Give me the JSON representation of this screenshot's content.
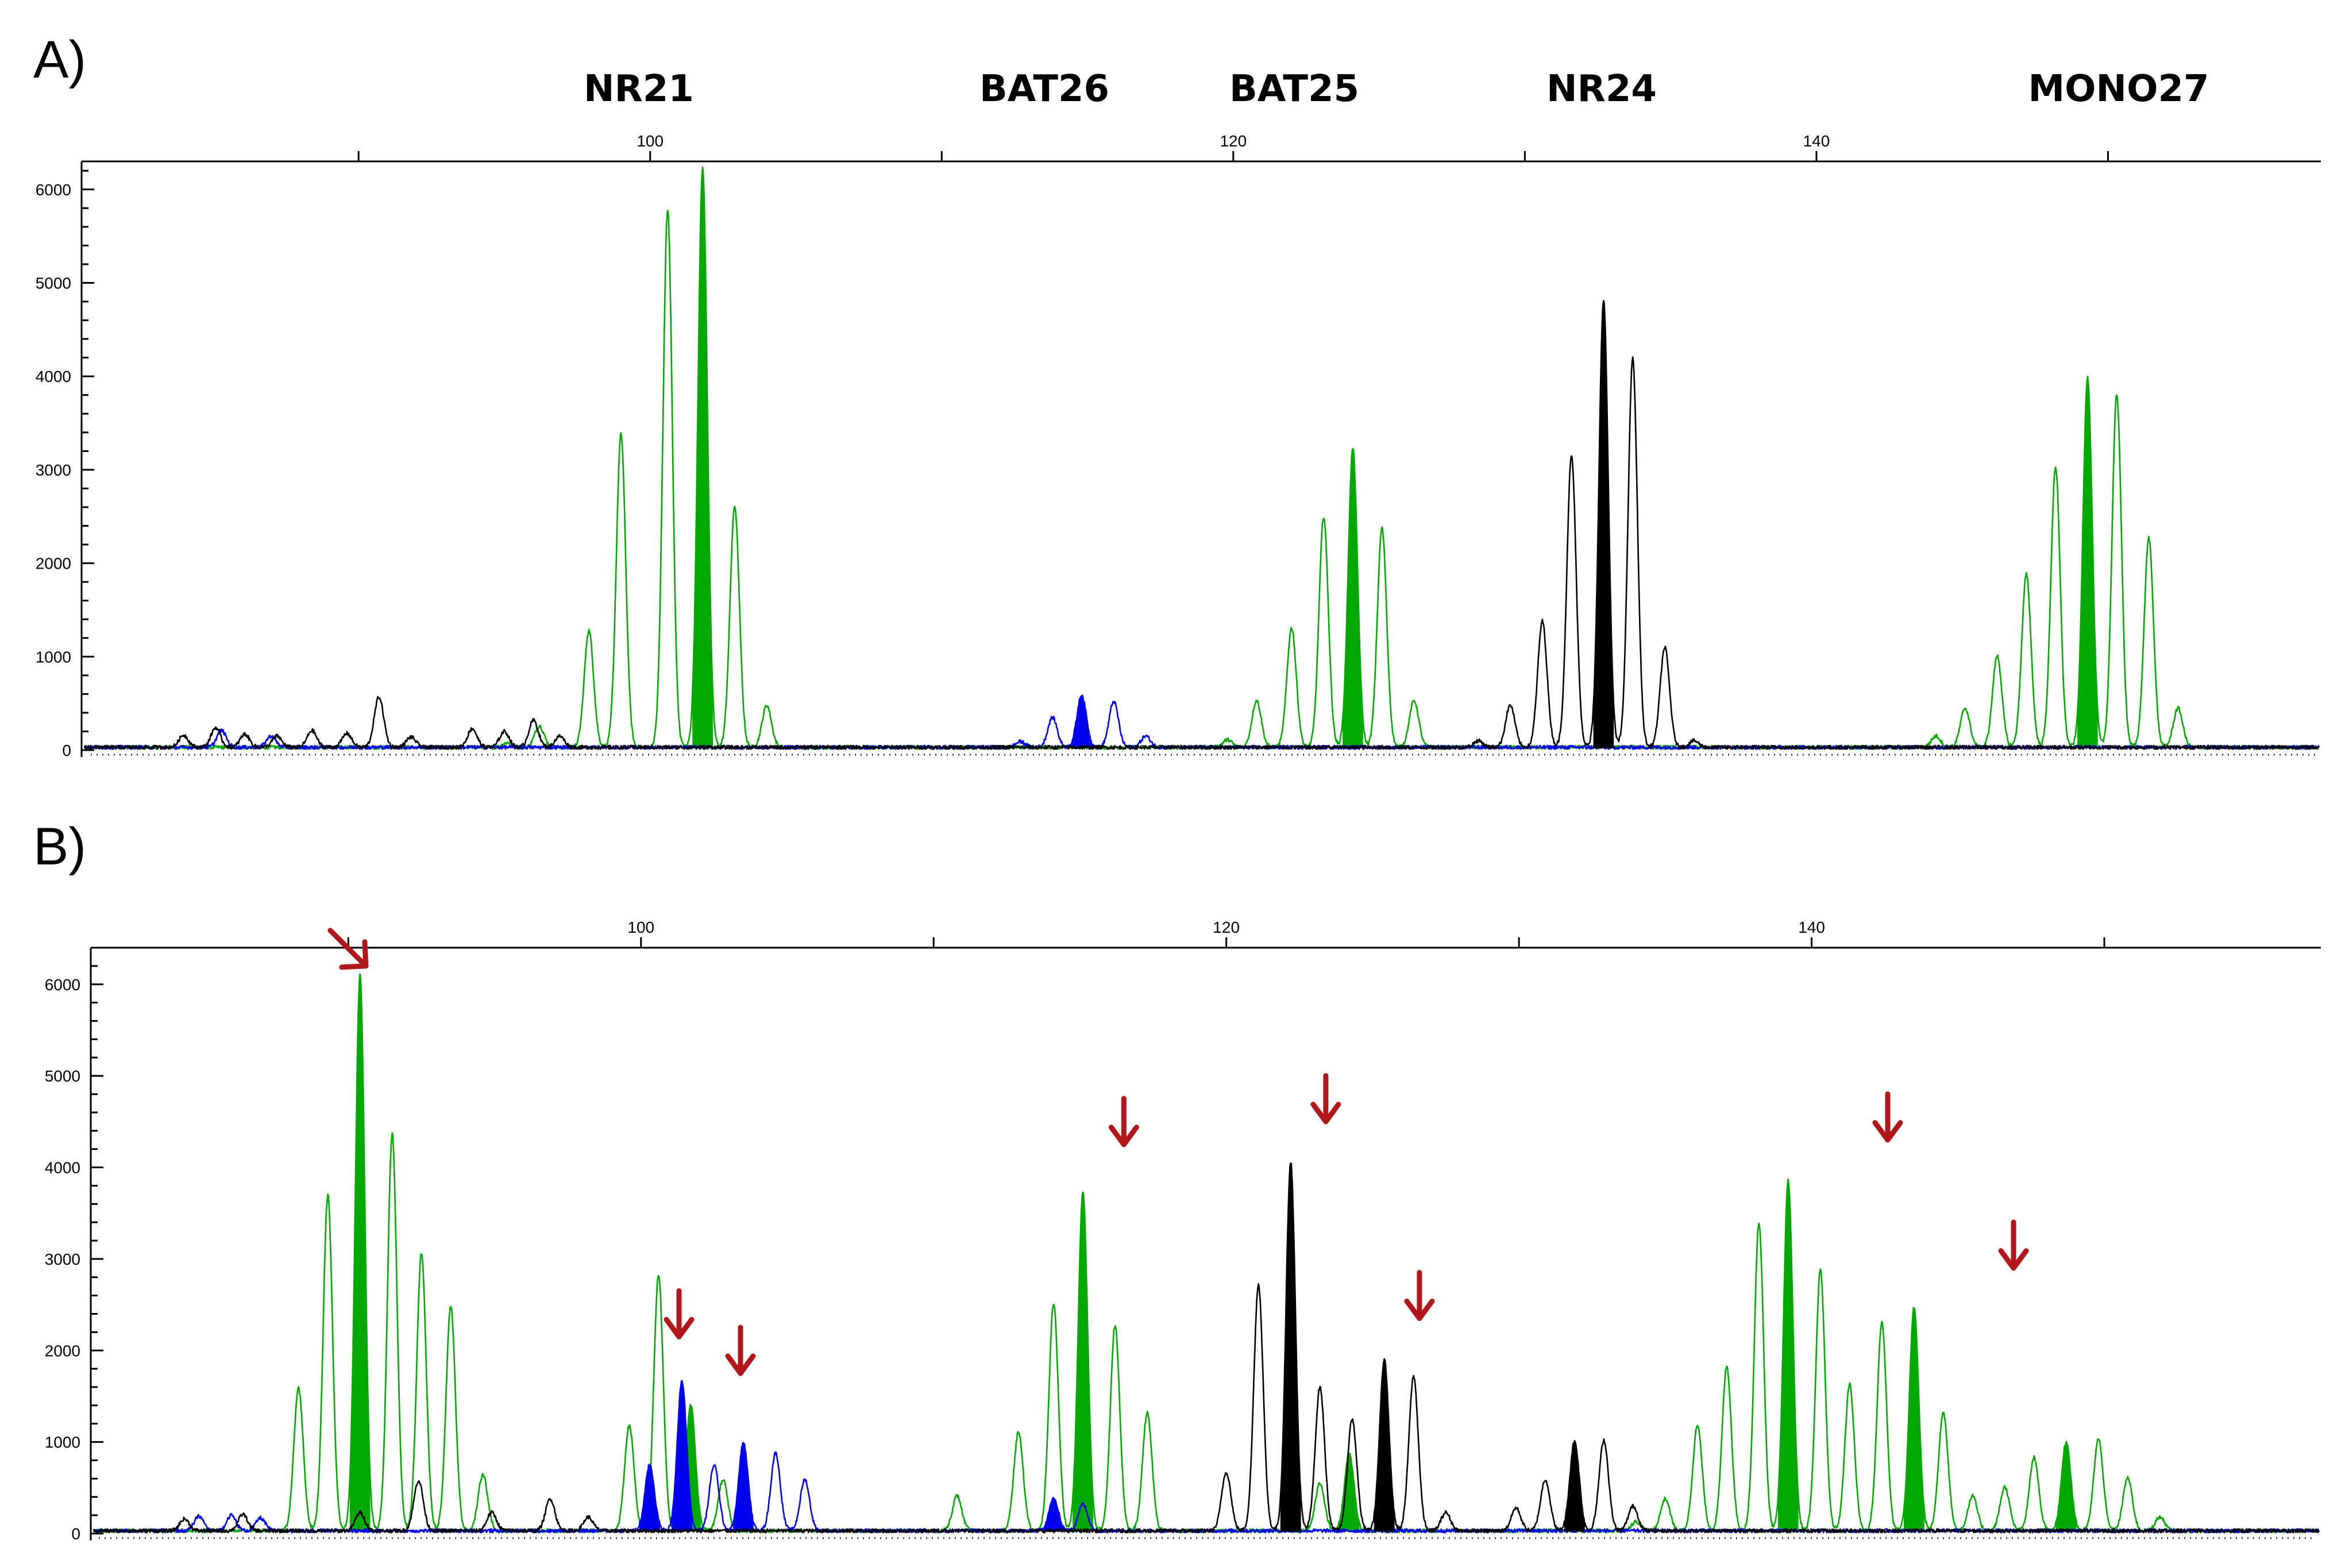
{
  "figure": {
    "panel_a_label": "A)",
    "panel_b_label": "B)",
    "marker_labels": [
      "NR21",
      "BAT26",
      "BAT25",
      "NR24",
      "MONO27"
    ]
  },
  "colors": {
    "green": "#00a800",
    "blue": "#0000ee",
    "black": "#000000",
    "arrow": "#b0161a"
  },
  "chart_data": [
    {
      "type": "line",
      "panel": "A)",
      "title": "",
      "xlabel": "",
      "ylabel": "",
      "x_ticks": [
        100,
        120,
        140
      ],
      "xlim": [
        80.5,
        157.3
      ],
      "y_ticks": [
        0,
        1000,
        2000,
        3000,
        4000,
        5000,
        6000
      ],
      "ylim": [
        0,
        6300
      ],
      "markers": [
        {
          "name": "NR21",
          "x": 101
        },
        {
          "name": "BAT26",
          "x": 115
        },
        {
          "name": "BAT25",
          "x": 124
        },
        {
          "name": "NR24",
          "x": 130.7
        },
        {
          "name": "MONO27",
          "x": 151.5
        }
      ],
      "series": [
        {
          "color": "green",
          "peaks": [
            {
              "x": 95.1,
              "y": 50
            },
            {
              "x": 96.2,
              "y": 230
            },
            {
              "x": 97.9,
              "y": 1250
            },
            {
              "x": 99.0,
              "y": 3350
            },
            {
              "x": 100.6,
              "y": 5750
            },
            {
              "x": 101.8,
              "y": 6200,
              "filled": true
            },
            {
              "x": 102.9,
              "y": 2580
            },
            {
              "x": 104.0,
              "y": 450
            },
            {
              "x": 119.8,
              "y": 80
            },
            {
              "x": 120.8,
              "y": 500
            },
            {
              "x": 122.0,
              "y": 1280
            },
            {
              "x": 123.1,
              "y": 2470
            },
            {
              "x": 124.1,
              "y": 3200,
              "filled": true
            },
            {
              "x": 125.1,
              "y": 2350
            },
            {
              "x": 126.2,
              "y": 500
            },
            {
              "x": 144.1,
              "y": 120
            },
            {
              "x": 145.1,
              "y": 420
            },
            {
              "x": 146.2,
              "y": 980
            },
            {
              "x": 147.2,
              "y": 1850
            },
            {
              "x": 148.2,
              "y": 3000
            },
            {
              "x": 149.3,
              "y": 3960,
              "filled": true
            },
            {
              "x": 150.3,
              "y": 3780
            },
            {
              "x": 151.4,
              "y": 2240
            },
            {
              "x": 152.4,
              "y": 420
            }
          ]
        },
        {
          "color": "blue",
          "peaks": [
            {
              "x": 85.3,
              "y": 180
            },
            {
              "x": 87.0,
              "y": 120
            },
            {
              "x": 112.7,
              "y": 60
            },
            {
              "x": 113.8,
              "y": 320
            },
            {
              "x": 114.8,
              "y": 560,
              "filled": true
            },
            {
              "x": 115.9,
              "y": 490
            },
            {
              "x": 117.0,
              "y": 120
            }
          ]
        },
        {
          "color": "black",
          "peaks": [
            {
              "x": 84.0,
              "y": 130
            },
            {
              "x": 85.1,
              "y": 210
            },
            {
              "x": 86.1,
              "y": 140
            },
            {
              "x": 87.2,
              "y": 120
            },
            {
              "x": 88.4,
              "y": 180
            },
            {
              "x": 89.6,
              "y": 150
            },
            {
              "x": 90.7,
              "y": 540
            },
            {
              "x": 91.8,
              "y": 110
            },
            {
              "x": 93.9,
              "y": 200
            },
            {
              "x": 95.0,
              "y": 170
            },
            {
              "x": 96.0,
              "y": 290
            },
            {
              "x": 96.9,
              "y": 120
            },
            {
              "x": 128.4,
              "y": 70
            },
            {
              "x": 129.5,
              "y": 450
            },
            {
              "x": 130.6,
              "y": 1350
            },
            {
              "x": 131.6,
              "y": 3120
            },
            {
              "x": 132.7,
              "y": 4780,
              "filled": true
            },
            {
              "x": 133.7,
              "y": 4160
            },
            {
              "x": 134.8,
              "y": 1070
            },
            {
              "x": 135.8,
              "y": 70
            }
          ]
        }
      ]
    },
    {
      "type": "line",
      "panel": "B)",
      "title": "",
      "xlabel": "",
      "ylabel": "",
      "x_ticks": [
        100,
        120,
        140
      ],
      "xlim": [
        81.2,
        157.4
      ],
      "y_ticks": [
        0,
        1000,
        2000,
        3000,
        4000,
        5000,
        6000
      ],
      "ylim": [
        0,
        6400
      ],
      "arrows": [
        {
          "x": 90.6,
          "y": 6200,
          "direction": "diagonal"
        },
        {
          "x": 101.3,
          "y": 2150,
          "direction": "down"
        },
        {
          "x": 103.4,
          "y": 1750,
          "direction": "down"
        },
        {
          "x": 116.5,
          "y": 4250,
          "direction": "down"
        },
        {
          "x": 123.4,
          "y": 4500,
          "direction": "down"
        },
        {
          "x": 126.6,
          "y": 2350,
          "direction": "down"
        },
        {
          "x": 142.6,
          "y": 4300,
          "direction": "down"
        },
        {
          "x": 146.9,
          "y": 2900,
          "direction": "down"
        }
      ],
      "series": [
        {
          "color": "green",
          "peaks": [
            {
              "x": 88.3,
              "y": 1560
            },
            {
              "x": 89.3,
              "y": 3670
            },
            {
              "x": 90.4,
              "y": 6080,
              "filled": true
            },
            {
              "x": 91.5,
              "y": 4330
            },
            {
              "x": 92.5,
              "y": 3030
            },
            {
              "x": 93.5,
              "y": 2460
            },
            {
              "x": 94.6,
              "y": 620
            },
            {
              "x": 99.6,
              "y": 1150
            },
            {
              "x": 100.6,
              "y": 2800
            },
            {
              "x": 101.7,
              "y": 1380,
              "filled": true
            },
            {
              "x": 102.8,
              "y": 560
            },
            {
              "x": 110.8,
              "y": 380
            },
            {
              "x": 112.9,
              "y": 1080
            },
            {
              "x": 114.1,
              "y": 2490
            },
            {
              "x": 115.1,
              "y": 3700,
              "filled": true
            },
            {
              "x": 116.2,
              "y": 2250
            },
            {
              "x": 117.3,
              "y": 1290
            },
            {
              "x": 123.2,
              "y": 520
            },
            {
              "x": 124.2,
              "y": 850,
              "filled": true
            },
            {
              "x": 134.0,
              "y": 100
            },
            {
              "x": 135.0,
              "y": 350
            },
            {
              "x": 136.1,
              "y": 1150
            },
            {
              "x": 137.1,
              "y": 1800
            },
            {
              "x": 138.2,
              "y": 3360
            },
            {
              "x": 139.2,
              "y": 3820,
              "filled": true
            },
            {
              "x": 140.3,
              "y": 2850
            },
            {
              "x": 141.3,
              "y": 1600
            },
            {
              "x": 142.4,
              "y": 2280
            },
            {
              "x": 143.5,
              "y": 2440,
              "filled": true
            },
            {
              "x": 144.5,
              "y": 1300
            },
            {
              "x": 145.5,
              "y": 380
            },
            {
              "x": 146.6,
              "y": 480
            },
            {
              "x": 147.6,
              "y": 800
            },
            {
              "x": 148.7,
              "y": 970,
              "filled": true
            },
            {
              "x": 149.8,
              "y": 1000
            },
            {
              "x": 150.8,
              "y": 580
            },
            {
              "x": 151.9,
              "y": 150
            }
          ]
        },
        {
          "color": "blue",
          "peaks": [
            {
              "x": 84.9,
              "y": 160
            },
            {
              "x": 86.0,
              "y": 170
            },
            {
              "x": 87.0,
              "y": 140
            },
            {
              "x": 100.3,
              "y": 720,
              "filled": true
            },
            {
              "x": 101.4,
              "y": 1630,
              "filled": true
            },
            {
              "x": 102.5,
              "y": 720
            },
            {
              "x": 103.5,
              "y": 960,
              "filled": true
            },
            {
              "x": 104.6,
              "y": 850
            },
            {
              "x": 105.6,
              "y": 560
            },
            {
              "x": 114.1,
              "y": 350,
              "filled": true
            },
            {
              "x": 115.1,
              "y": 290
            }
          ]
        },
        {
          "color": "black",
          "peaks": [
            {
              "x": 84.4,
              "y": 130
            },
            {
              "x": 86.4,
              "y": 180
            },
            {
              "x": 90.4,
              "y": 200
            },
            {
              "x": 92.4,
              "y": 550
            },
            {
              "x": 94.9,
              "y": 200
            },
            {
              "x": 96.9,
              "y": 350
            },
            {
              "x": 98.2,
              "y": 150
            },
            {
              "x": 120.0,
              "y": 640
            },
            {
              "x": 121.1,
              "y": 2690
            },
            {
              "x": 122.2,
              "y": 4030,
              "filled": true
            },
            {
              "x": 123.2,
              "y": 1570
            },
            {
              "x": 124.3,
              "y": 1220
            },
            {
              "x": 125.4,
              "y": 1860,
              "filled": true
            },
            {
              "x": 126.4,
              "y": 1690
            },
            {
              "x": 127.5,
              "y": 200
            },
            {
              "x": 129.9,
              "y": 250
            },
            {
              "x": 130.9,
              "y": 560
            },
            {
              "x": 131.9,
              "y": 980,
              "filled": true
            },
            {
              "x": 132.9,
              "y": 990
            },
            {
              "x": 133.9,
              "y": 270
            }
          ]
        }
      ]
    }
  ]
}
